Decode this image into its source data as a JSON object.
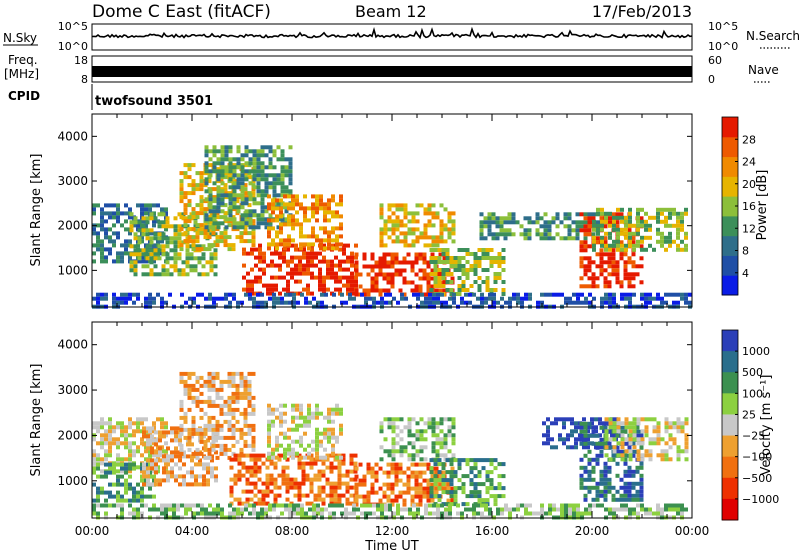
{
  "header": {
    "station": "Dome C East (fitACF)",
    "beam": "Beam 12",
    "date": "17/Feb/2013"
  },
  "noise_panel": {
    "left_label": "N.Sky",
    "left_ticks": [
      "10^5",
      "10^0"
    ],
    "right_ticks": [
      "10^5",
      "10^0"
    ],
    "right_label": "N.Search"
  },
  "freq_panel": {
    "left_label_top": "Freq.",
    "left_label_unit": "[MHz]",
    "left_ticks": [
      "18",
      "8"
    ],
    "right_ticks": [
      "60",
      "0"
    ],
    "right_label": "Nave"
  },
  "cpid_panel": {
    "label": "CPID",
    "program": "twofsound 3501"
  },
  "colors": {
    "power_scale": [
      "#0a1ce6",
      "#1f4fa6",
      "#2e6e8a",
      "#3c8f5a",
      "#8cbf3a",
      "#e6b400",
      "#f08a00",
      "#ee5a00",
      "#e51a00"
    ],
    "velocity_scale": [
      "#2b3fb8",
      "#2a6e8c",
      "#3c9050",
      "#8cd040",
      "#c8c8c8",
      "#eea030",
      "#f07010",
      "#ee3000",
      "#e00000"
    ]
  },
  "chart_data": [
    {
      "type": "heatmap",
      "quantity": "Power",
      "xlabel": "",
      "ylabel": "Slant Range [km]",
      "ylim": [
        180,
        4500
      ],
      "yticks": [
        1000,
        2000,
        3000,
        4000
      ],
      "xlim_hours": [
        0,
        24
      ],
      "colorbar": {
        "label": "Power [dB]",
        "range": [
          0,
          32
        ],
        "tick_labels": [
          "4",
          "8",
          "12",
          "16",
          "20",
          "24",
          "28"
        ]
      },
      "regions": [
        {
          "x": [
            0.0,
            3.0
          ],
          "y": [
            1200,
            2500
          ],
          "level": 2
        },
        {
          "x": [
            1.5,
            5.0
          ],
          "y": [
            900,
            2300
          ],
          "level": 4
        },
        {
          "x": [
            3.5,
            6.5
          ],
          "y": [
            1500,
            3400
          ],
          "level": 5
        },
        {
          "x": [
            4.5,
            8.0
          ],
          "y": [
            2000,
            3800
          ],
          "level": 3
        },
        {
          "x": [
            6.0,
            10.5
          ],
          "y": [
            500,
            1600
          ],
          "level": 8
        },
        {
          "x": [
            7.0,
            10.0
          ],
          "y": [
            1500,
            2700
          ],
          "level": 6
        },
        {
          "x": [
            10.5,
            14.5
          ],
          "y": [
            500,
            1400
          ],
          "level": 8
        },
        {
          "x": [
            11.5,
            14.5
          ],
          "y": [
            1600,
            2500
          ],
          "level": 5
        },
        {
          "x": [
            13.5,
            16.5
          ],
          "y": [
            500,
            1500
          ],
          "level": 4
        },
        {
          "x": [
            15.5,
            20.5
          ],
          "y": [
            1700,
            2300
          ],
          "level": 3
        },
        {
          "x": [
            19.5,
            22.0
          ],
          "y": [
            600,
            2300
          ],
          "level": 8
        },
        {
          "x": [
            20.0,
            23.8
          ],
          "y": [
            1500,
            2400
          ],
          "level": 4
        },
        {
          "x": [
            0.0,
            24.0
          ],
          "y": [
            200,
            500
          ],
          "level": 1
        }
      ]
    },
    {
      "type": "heatmap",
      "quantity": "Velocity",
      "xlabel": "Time UT",
      "ylabel": "Slant Range [km]",
      "ylim": [
        180,
        4500
      ],
      "yticks": [
        1000,
        2000,
        3000,
        4000
      ],
      "xlim_hours": [
        0,
        24
      ],
      "xtick_labels": [
        "00:00",
        "04:00",
        "08:00",
        "12:00",
        "16:00",
        "20:00",
        "00:00"
      ],
      "colorbar": {
        "label": "Velocity [m s⁻¹]",
        "tick_labels": [
          "1000",
          "500",
          "100",
          "25",
          "−25",
          "−100",
          "−500",
          "−1000"
        ]
      },
      "regions": [
        {
          "x": [
            0.0,
            3.0
          ],
          "y": [
            1200,
            2400
          ],
          "level": 4
        },
        {
          "x": [
            0.0,
            2.5
          ],
          "y": [
            600,
            1400
          ],
          "level": 2
        },
        {
          "x": [
            2.0,
            5.0
          ],
          "y": [
            900,
            2200
          ],
          "level": 5
        },
        {
          "x": [
            3.5,
            6.5
          ],
          "y": [
            1500,
            3400
          ],
          "level": 5
        },
        {
          "x": [
            5.5,
            10.5
          ],
          "y": [
            500,
            1600
          ],
          "level": 6
        },
        {
          "x": [
            7.0,
            10.0
          ],
          "y": [
            1500,
            2700
          ],
          "level": 4
        },
        {
          "x": [
            10.5,
            14.5
          ],
          "y": [
            500,
            1400
          ],
          "level": 6
        },
        {
          "x": [
            11.5,
            14.5
          ],
          "y": [
            1500,
            2400
          ],
          "level": 3
        },
        {
          "x": [
            13.5,
            16.5
          ],
          "y": [
            500,
            1500
          ],
          "level": 2
        },
        {
          "x": [
            18.0,
            21.0
          ],
          "y": [
            1700,
            2400
          ],
          "level": 0
        },
        {
          "x": [
            19.5,
            22.0
          ],
          "y": [
            600,
            2300
          ],
          "level": 1
        },
        {
          "x": [
            20.5,
            23.8
          ],
          "y": [
            1500,
            2400
          ],
          "level": 4
        },
        {
          "x": [
            0.0,
            24.0
          ],
          "y": [
            200,
            500
          ],
          "level": 3
        }
      ]
    }
  ]
}
